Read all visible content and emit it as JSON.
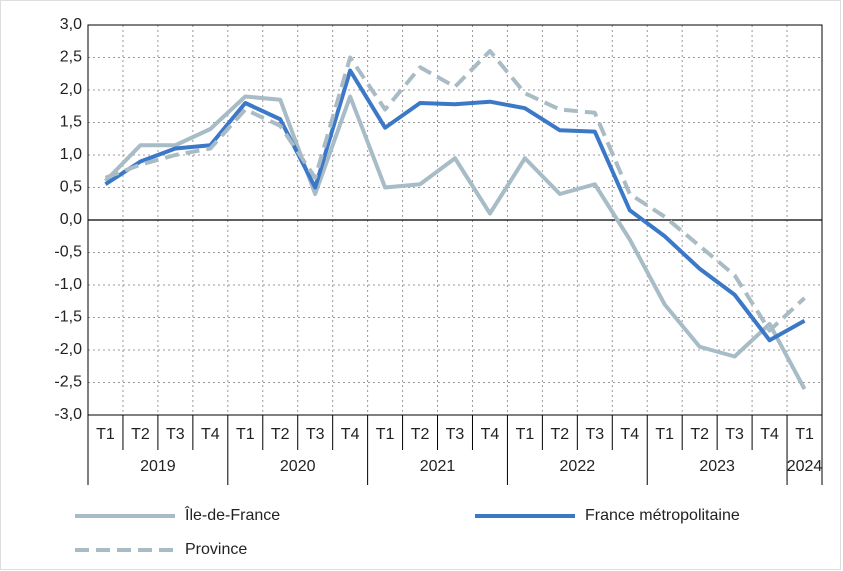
{
  "chart_data": {
    "type": "line",
    "categories": [
      "T1",
      "T2",
      "T3",
      "T4",
      "T1",
      "T2",
      "T3",
      "T4",
      "T1",
      "T2",
      "T3",
      "T4",
      "T1",
      "T2",
      "T3",
      "T4",
      "T1",
      "T2",
      "T3",
      "T4",
      "T1"
    ],
    "groups": [
      {
        "label": "2019",
        "span": 4
      },
      {
        "label": "2020",
        "span": 4
      },
      {
        "label": "2021",
        "span": 4
      },
      {
        "label": "2022",
        "span": 4
      },
      {
        "label": "2023",
        "span": 4
      },
      {
        "label": "2024",
        "span": 1
      }
    ],
    "series": [
      {
        "name": "Île-de-France",
        "color": "#a7bcc6",
        "dashed": false,
        "values": [
          0.6,
          1.15,
          1.15,
          1.4,
          1.9,
          1.85,
          0.4,
          1.9,
          0.5,
          0.55,
          0.95,
          0.1,
          0.95,
          0.4,
          0.55,
          -0.3,
          -1.3,
          -1.95,
          -2.1,
          -1.6,
          -2.6
        ]
      },
      {
        "name": "France métropolitaine",
        "color": "#3c78c8",
        "dashed": false,
        "values": [
          0.55,
          0.9,
          1.1,
          1.15,
          1.8,
          1.55,
          0.5,
          2.3,
          1.42,
          1.8,
          1.78,
          1.82,
          1.72,
          1.38,
          1.36,
          0.15,
          -0.25,
          -0.75,
          -1.15,
          -1.85,
          -1.55
        ]
      },
      {
        "name": "Province",
        "color": "#a9bcc6",
        "dashed": true,
        "values": [
          0.65,
          0.85,
          1.0,
          1.1,
          1.7,
          1.45,
          0.65,
          2.5,
          1.7,
          2.35,
          2.05,
          2.6,
          1.95,
          1.7,
          1.65,
          0.4,
          0.05,
          -0.4,
          -0.85,
          -1.7,
          -1.2
        ]
      }
    ],
    "ylim": [
      -3,
      3
    ],
    "yticks": [
      {
        "value": -3,
        "label": "-3,0"
      },
      {
        "value": -2.5,
        "label": "-2,5"
      },
      {
        "value": -2,
        "label": "-2,0"
      },
      {
        "value": -1.5,
        "label": "-1,5"
      },
      {
        "value": -1,
        "label": "-1,0"
      },
      {
        "value": -0.5,
        "label": "-0,5"
      },
      {
        "value": 0,
        "label": "0,0"
      },
      {
        "value": 0.5,
        "label": "0,5"
      },
      {
        "value": 1,
        "label": "1,0"
      },
      {
        "value": 1.5,
        "label": "1,5"
      },
      {
        "value": 2,
        "label": "2,0"
      },
      {
        "value": 2.5,
        "label": "2,5"
      },
      {
        "value": 3,
        "label": "3,0"
      }
    ],
    "grid": true
  }
}
